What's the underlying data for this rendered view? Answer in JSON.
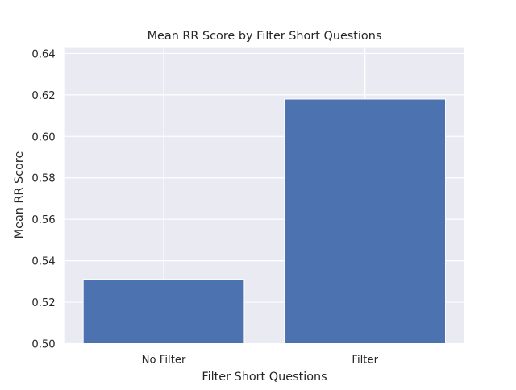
{
  "chart_data": {
    "type": "bar",
    "title": "Mean RR Score by Filter Short Questions",
    "xlabel": "Filter Short Questions",
    "ylabel": "Mean RR Score",
    "categories": [
      "No Filter",
      "Filter"
    ],
    "values": [
      0.531,
      0.618
    ],
    "ylim": [
      0.5,
      0.643
    ],
    "yticks": [
      "0.50",
      "0.52",
      "0.54",
      "0.56",
      "0.58",
      "0.60",
      "0.62",
      "0.64"
    ],
    "grid": true,
    "colors": {
      "bar": "#4c72b0",
      "background": "#eaeaf2",
      "grid": "#ffffff"
    }
  }
}
